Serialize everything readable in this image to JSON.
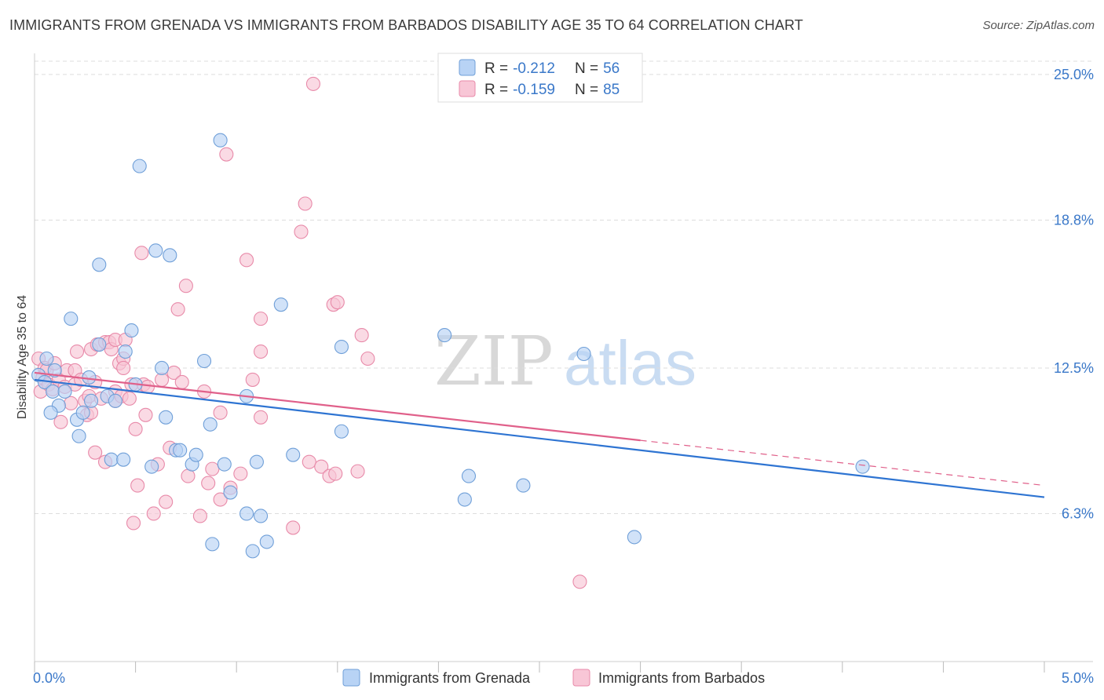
{
  "header": {
    "title": "IMMIGRANTS FROM GRENADA VS IMMIGRANTS FROM BARBADOS DISABILITY AGE 35 TO 64 CORRELATION CHART",
    "source": "Source: ZipAtlas.com"
  },
  "watermark": {
    "zip": "ZIP",
    "atlas": "atlas"
  },
  "colors": {
    "grenada_fill": "#b8d3f5",
    "grenada_stroke": "#6f9fd8",
    "grenada_line": "#2e74d2",
    "barbados_fill": "#f8c6d6",
    "barbados_stroke": "#e88aa9",
    "barbados_line": "#e0608a",
    "axis_label": "#3a78c9",
    "grid": "#dddddd"
  },
  "chart_data": {
    "type": "scatter",
    "title": "IMMIGRANTS FROM GRENADA VS IMMIGRANTS FROM BARBADOS DISABILITY AGE 35 TO 64 CORRELATION CHART",
    "xlabel": "",
    "ylabel": "Disability Age 35 to 64",
    "xlim": [
      0,
      5
    ],
    "ylim": [
      0,
      25.9
    ],
    "x_tick_labels": [
      {
        "value": 0,
        "label": "0.0%"
      },
      {
        "value": 5,
        "label": "5.0%"
      }
    ],
    "y_tick_labels": [
      {
        "value": 6.3,
        "label": "6.3%"
      },
      {
        "value": 12.5,
        "label": "12.5%"
      },
      {
        "value": 18.8,
        "label": "18.8%"
      },
      {
        "value": 25.0,
        "label": "25.0%"
      }
    ],
    "legend_stats": [
      {
        "r_label": "R =",
        "r_value": "-0.212",
        "n_label": "N =",
        "n_value": "56"
      },
      {
        "r_label": "R =",
        "r_value": "-0.159",
        "n_label": "N =",
        "n_value": "85"
      }
    ],
    "series": [
      {
        "name": "Immigrants from Grenada",
        "trend": {
          "x0": 0,
          "y0": 12.0,
          "x1": 5,
          "y1": 7.0,
          "solid_until": 5
        },
        "points": [
          [
            0.02,
            12.2
          ],
          [
            0.05,
            11.9
          ],
          [
            0.06,
            12.9
          ],
          [
            0.09,
            11.5
          ],
          [
            0.1,
            12.4
          ],
          [
            0.12,
            10.9
          ],
          [
            0.15,
            11.5
          ],
          [
            0.08,
            10.6
          ],
          [
            0.18,
            14.6
          ],
          [
            0.21,
            10.3
          ],
          [
            0.22,
            9.6
          ],
          [
            0.24,
            10.6
          ],
          [
            0.27,
            12.1
          ],
          [
            0.28,
            11.1
          ],
          [
            0.32,
            16.9
          ],
          [
            0.32,
            13.5
          ],
          [
            0.36,
            11.3
          ],
          [
            0.38,
            8.6
          ],
          [
            0.4,
            11.1
          ],
          [
            0.44,
            8.6
          ],
          [
            0.45,
            13.2
          ],
          [
            0.48,
            14.1
          ],
          [
            0.5,
            11.8
          ],
          [
            0.52,
            21.1
          ],
          [
            0.58,
            8.3
          ],
          [
            0.6,
            17.5
          ],
          [
            0.63,
            12.5
          ],
          [
            0.65,
            10.4
          ],
          [
            0.67,
            17.3
          ],
          [
            0.7,
            9.0
          ],
          [
            0.72,
            9.0
          ],
          [
            0.78,
            8.4
          ],
          [
            0.8,
            8.8
          ],
          [
            0.84,
            12.8
          ],
          [
            0.87,
            10.1
          ],
          [
            0.88,
            5.0
          ],
          [
            0.92,
            22.2
          ],
          [
            0.94,
            8.4
          ],
          [
            0.97,
            7.2
          ],
          [
            1.05,
            11.3
          ],
          [
            1.05,
            6.3
          ],
          [
            1.08,
            4.7
          ],
          [
            1.1,
            8.5
          ],
          [
            1.12,
            6.2
          ],
          [
            1.15,
            5.1
          ],
          [
            1.22,
            15.2
          ],
          [
            1.28,
            8.8
          ],
          [
            1.52,
            9.8
          ],
          [
            1.52,
            13.4
          ],
          [
            2.03,
            13.9
          ],
          [
            2.13,
            6.9
          ],
          [
            2.15,
            7.9
          ],
          [
            2.42,
            7.5
          ],
          [
            2.72,
            13.1
          ],
          [
            2.97,
            5.3
          ],
          [
            4.1,
            8.3
          ]
        ]
      },
      {
        "name": "Immigrants from Barbados",
        "trend": {
          "x0": 0,
          "y0": 12.3,
          "x1": 5,
          "y1": 7.5,
          "solid_until": 3.0
        },
        "points": [
          [
            0.02,
            12.9
          ],
          [
            0.03,
            11.5
          ],
          [
            0.04,
            12.1
          ],
          [
            0.05,
            12.5
          ],
          [
            0.06,
            12.4
          ],
          [
            0.07,
            11.8
          ],
          [
            0.09,
            11.6
          ],
          [
            0.1,
            12.7
          ],
          [
            0.12,
            12.0
          ],
          [
            0.13,
            10.2
          ],
          [
            0.15,
            11.7
          ],
          [
            0.16,
            12.4
          ],
          [
            0.18,
            11.0
          ],
          [
            0.2,
            11.8
          ],
          [
            0.2,
            12.4
          ],
          [
            0.21,
            13.2
          ],
          [
            0.23,
            12.0
          ],
          [
            0.25,
            11.1
          ],
          [
            0.26,
            10.5
          ],
          [
            0.27,
            11.3
          ],
          [
            0.28,
            10.6
          ],
          [
            0.28,
            13.3
          ],
          [
            0.3,
            8.9
          ],
          [
            0.3,
            11.9
          ],
          [
            0.31,
            13.5
          ],
          [
            0.33,
            11.2
          ],
          [
            0.35,
            8.5
          ],
          [
            0.35,
            13.6
          ],
          [
            0.37,
            13.6
          ],
          [
            0.38,
            13.3
          ],
          [
            0.4,
            11.5
          ],
          [
            0.4,
            11.1
          ],
          [
            0.4,
            13.7
          ],
          [
            0.42,
            12.7
          ],
          [
            0.43,
            11.3
          ],
          [
            0.44,
            12.9
          ],
          [
            0.44,
            12.5
          ],
          [
            0.45,
            13.7
          ],
          [
            0.47,
            11.2
          ],
          [
            0.48,
            11.8
          ],
          [
            0.49,
            5.9
          ],
          [
            0.5,
            9.9
          ],
          [
            0.51,
            7.5
          ],
          [
            0.53,
            17.4
          ],
          [
            0.54,
            11.8
          ],
          [
            0.55,
            10.5
          ],
          [
            0.56,
            11.7
          ],
          [
            0.59,
            6.3
          ],
          [
            0.61,
            8.4
          ],
          [
            0.63,
            12.0
          ],
          [
            0.65,
            6.8
          ],
          [
            0.67,
            9.1
          ],
          [
            0.69,
            12.3
          ],
          [
            0.71,
            15.0
          ],
          [
            0.73,
            11.9
          ],
          [
            0.75,
            16.0
          ],
          [
            0.76,
            7.9
          ],
          [
            0.82,
            6.2
          ],
          [
            0.84,
            11.5
          ],
          [
            0.86,
            7.6
          ],
          [
            0.88,
            8.2
          ],
          [
            0.92,
            6.9
          ],
          [
            0.92,
            10.6
          ],
          [
            0.95,
            21.6
          ],
          [
            0.97,
            7.4
          ],
          [
            1.02,
            8.0
          ],
          [
            1.05,
            17.1
          ],
          [
            1.08,
            12.0
          ],
          [
            1.12,
            13.2
          ],
          [
            1.12,
            14.6
          ],
          [
            1.12,
            10.4
          ],
          [
            1.28,
            5.7
          ],
          [
            1.32,
            18.3
          ],
          [
            1.34,
            19.5
          ],
          [
            1.36,
            8.5
          ],
          [
            1.38,
            24.6
          ],
          [
            1.42,
            8.3
          ],
          [
            1.46,
            7.9
          ],
          [
            1.48,
            15.2
          ],
          [
            1.49,
            8.0
          ],
          [
            1.5,
            15.3
          ],
          [
            1.6,
            8.1
          ],
          [
            1.62,
            13.9
          ],
          [
            1.65,
            12.9
          ],
          [
            2.7,
            3.4
          ]
        ]
      }
    ]
  }
}
